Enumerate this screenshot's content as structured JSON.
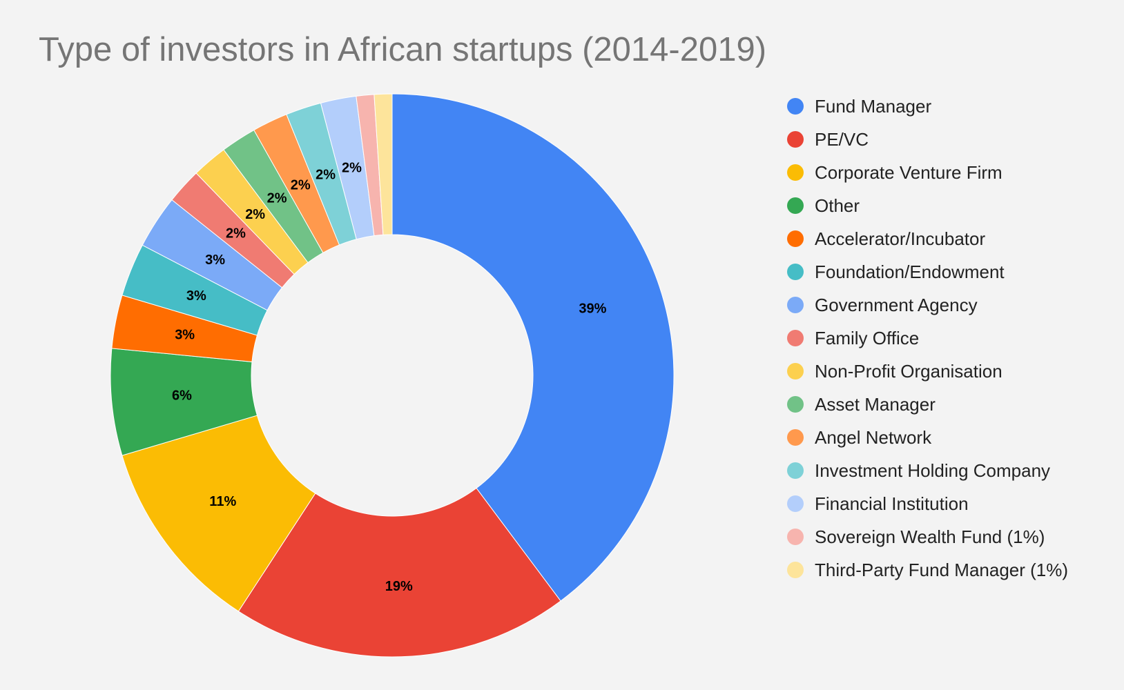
{
  "chart_data": {
    "type": "pie",
    "title": "Type of investors in African startups (2014-2019)",
    "series": [
      {
        "name": "Fund Manager",
        "value": 39,
        "label": "39%",
        "color": "#4285f4"
      },
      {
        "name": "PE/VC",
        "value": 19,
        "label": "19%",
        "color": "#ea4335"
      },
      {
        "name": "Corporate Venture Firm",
        "value": 11,
        "label": "11%",
        "color": "#fbbc04"
      },
      {
        "name": "Other",
        "value": 6,
        "label": "6%",
        "color": "#34a853"
      },
      {
        "name": "Accelerator/Incubator",
        "value": 3,
        "label": "3%",
        "color": "#ff6d01"
      },
      {
        "name": "Foundation/Endowment",
        "value": 3,
        "label": "3%",
        "color": "#46bdc6"
      },
      {
        "name": "Government Agency",
        "value": 3,
        "label": "3%",
        "color": "#7baaf7"
      },
      {
        "name": "Family Office",
        "value": 2,
        "label": "2%",
        "color": "#f07b72"
      },
      {
        "name": "Non-Profit Organisation",
        "value": 2,
        "label": "2%",
        "color": "#fcd04f"
      },
      {
        "name": "Asset Manager",
        "value": 2,
        "label": "2%",
        "color": "#71c287"
      },
      {
        "name": "Angel Network",
        "value": 2,
        "label": "2%",
        "color": "#ff994d"
      },
      {
        "name": "Investment Holding Company",
        "value": 2,
        "label": "2%",
        "color": "#7ed1d7"
      },
      {
        "name": "Financial Institution",
        "value": 2,
        "label": "2%",
        "color": "#b3cefb"
      },
      {
        "name": "Sovereign Wealth Fund (1%)",
        "value": 1,
        "label": "",
        "color": "#f7b4ae"
      },
      {
        "name": "Third-Party Fund Manager (1%)",
        "value": 1,
        "label": "",
        "color": "#fde49b"
      }
    ],
    "legend": "right",
    "donut": true
  }
}
